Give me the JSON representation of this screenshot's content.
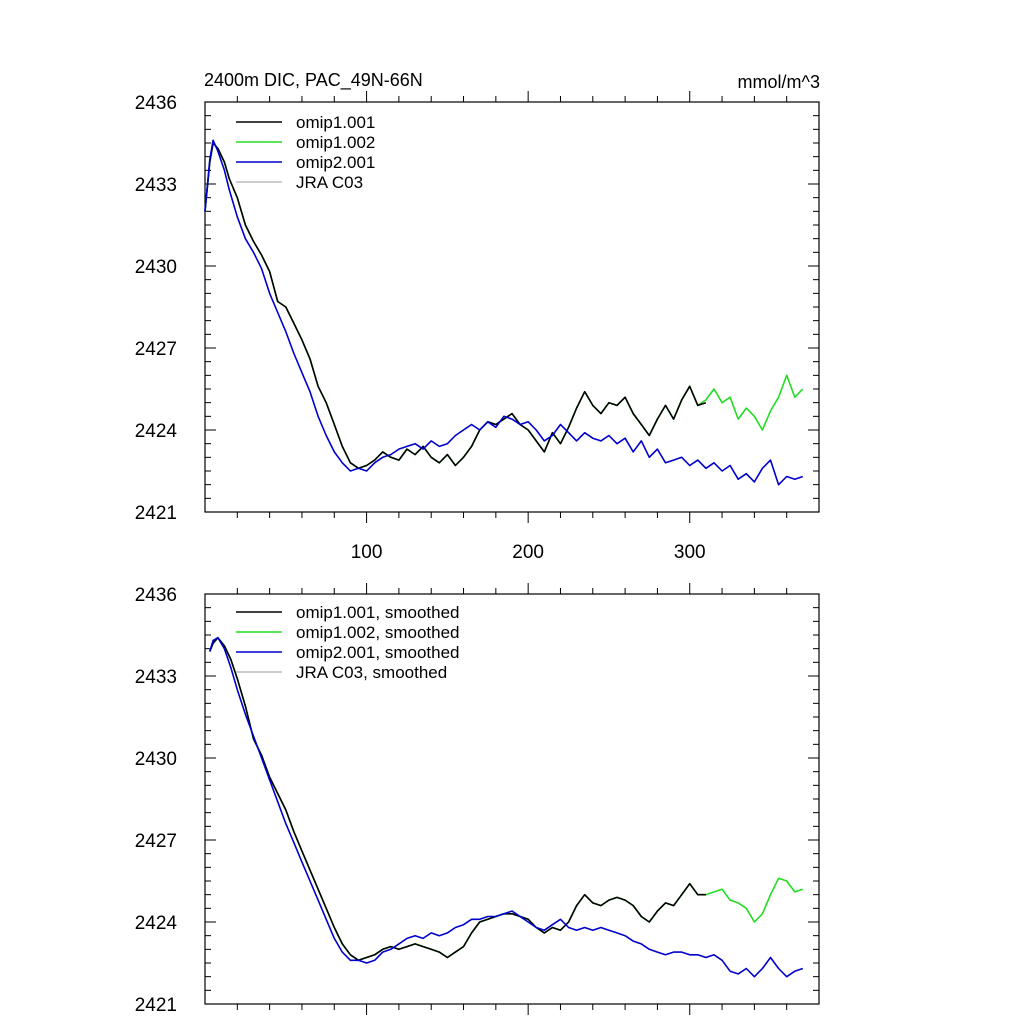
{
  "chart_data": [
    {
      "type": "line",
      "title": "2400m DIC, PAC_49N-66N",
      "units": "mmol/m^3",
      "xlabel": "",
      "ylabel": "",
      "xlim": [
        0,
        380
      ],
      "ylim": [
        2421,
        2436
      ],
      "x_ticks": [
        100,
        200,
        300
      ],
      "x_tick_labels": [
        "100",
        "200",
        "300"
      ],
      "y_ticks": [
        2421,
        2424,
        2427,
        2430,
        2433,
        2436
      ],
      "y_tick_labels": [
        "2421",
        "2424",
        "2427",
        "2430",
        "2433",
        "2436"
      ],
      "grid": false,
      "legend": "top-left",
      "series": [
        {
          "name": "omip1.001",
          "color": "#000000",
          "x": [
            0,
            3,
            5,
            8,
            12,
            15,
            20,
            25,
            30,
            35,
            40,
            45,
            50,
            55,
            60,
            65,
            70,
            75,
            80,
            85,
            90,
            95,
            100,
            105,
            110,
            115,
            120,
            125,
            130,
            135,
            140,
            145,
            150,
            155,
            160,
            165,
            170,
            175,
            180,
            185,
            190,
            195,
            200,
            205,
            210,
            215,
            220,
            225,
            230,
            235,
            240,
            245,
            250,
            255,
            260,
            265,
            270,
            275,
            280,
            285,
            290,
            295,
            300,
            305,
            310
          ],
          "values": [
            2432.0,
            2433.8,
            2434.5,
            2434.3,
            2433.8,
            2433.2,
            2432.5,
            2431.5,
            2430.9,
            2430.4,
            2429.8,
            2428.7,
            2428.5,
            2427.9,
            2427.3,
            2426.6,
            2425.6,
            2425.0,
            2424.2,
            2423.4,
            2422.8,
            2422.6,
            2422.7,
            2422.9,
            2423.2,
            2423.0,
            2422.9,
            2423.3,
            2423.1,
            2423.4,
            2423.0,
            2422.8,
            2423.1,
            2422.7,
            2423.0,
            2423.4,
            2424.0,
            2424.3,
            2424.2,
            2424.4,
            2424.6,
            2424.2,
            2424.0,
            2423.6,
            2423.2,
            2423.9,
            2423.5,
            2424.1,
            2424.8,
            2425.4,
            2424.9,
            2424.6,
            2425.0,
            2424.9,
            2425.2,
            2424.6,
            2424.2,
            2423.8,
            2424.4,
            2424.9,
            2424.4,
            2425.1,
            2425.6,
            2424.9,
            2425.0
          ]
        },
        {
          "name": "omip1.002",
          "color": "#22dd22",
          "x": [
            0,
            3,
            5,
            8,
            12,
            15,
            20,
            25,
            30,
            35,
            40,
            45,
            50,
            55,
            60,
            65,
            70,
            75,
            80,
            85,
            90,
            95,
            100,
            105,
            110,
            115,
            120,
            125,
            130,
            135,
            140,
            145,
            150,
            155,
            160,
            165,
            170,
            175,
            180,
            185,
            190,
            195,
            200,
            205,
            210,
            215,
            220,
            225,
            230,
            235,
            240,
            245,
            250,
            255,
            260,
            265,
            270,
            275,
            280,
            285,
            290,
            295,
            300,
            305,
            310,
            315,
            320,
            325,
            330,
            335,
            340,
            345,
            350,
            355,
            360,
            365,
            370
          ],
          "values": [
            2432.0,
            2433.8,
            2434.5,
            2434.3,
            2433.8,
            2433.2,
            2432.5,
            2431.5,
            2430.9,
            2430.4,
            2429.8,
            2428.7,
            2428.5,
            2427.9,
            2427.3,
            2426.6,
            2425.6,
            2425.0,
            2424.2,
            2423.4,
            2422.8,
            2422.6,
            2422.7,
            2422.9,
            2423.2,
            2423.0,
            2422.9,
            2423.3,
            2423.1,
            2423.4,
            2423.0,
            2422.8,
            2423.1,
            2422.7,
            2423.0,
            2423.4,
            2424.0,
            2424.3,
            2424.2,
            2424.4,
            2424.6,
            2424.2,
            2424.0,
            2423.6,
            2423.2,
            2423.9,
            2423.5,
            2424.1,
            2424.8,
            2425.4,
            2424.9,
            2424.6,
            2425.0,
            2424.9,
            2425.2,
            2424.6,
            2424.2,
            2423.8,
            2424.4,
            2424.9,
            2424.4,
            2425.1,
            2425.6,
            2424.9,
            2425.1,
            2425.5,
            2425.0,
            2425.2,
            2424.4,
            2424.8,
            2424.5,
            2424.0,
            2424.7,
            2425.2,
            2426.0,
            2425.2,
            2425.5
          ]
        },
        {
          "name": "omip2.001",
          "color": "#0000cc",
          "x": [
            0,
            3,
            5,
            8,
            12,
            15,
            20,
            25,
            30,
            35,
            40,
            45,
            50,
            55,
            60,
            65,
            70,
            75,
            80,
            85,
            90,
            95,
            100,
            105,
            110,
            115,
            120,
            125,
            130,
            135,
            140,
            145,
            150,
            155,
            160,
            165,
            170,
            175,
            180,
            185,
            190,
            195,
            200,
            205,
            210,
            215,
            220,
            225,
            230,
            235,
            240,
            245,
            250,
            255,
            260,
            265,
            270,
            275,
            280,
            285,
            290,
            295,
            300,
            305,
            310,
            315,
            320,
            325,
            330,
            335,
            340,
            345,
            350,
            355,
            360,
            365,
            370
          ],
          "values": [
            2432.0,
            2433.9,
            2434.6,
            2434.2,
            2433.5,
            2432.8,
            2431.8,
            2431.0,
            2430.5,
            2429.9,
            2429.0,
            2428.3,
            2427.6,
            2426.8,
            2426.1,
            2425.4,
            2424.5,
            2423.8,
            2423.2,
            2422.8,
            2422.5,
            2422.6,
            2422.5,
            2422.8,
            2423.0,
            2423.1,
            2423.3,
            2423.4,
            2423.5,
            2423.3,
            2423.6,
            2423.4,
            2423.5,
            2423.8,
            2424.0,
            2424.2,
            2424.0,
            2424.3,
            2424.1,
            2424.5,
            2424.4,
            2424.2,
            2424.3,
            2424.0,
            2423.6,
            2423.8,
            2424.2,
            2423.9,
            2423.6,
            2423.9,
            2423.7,
            2423.6,
            2423.8,
            2423.5,
            2423.7,
            2423.2,
            2423.6,
            2423.0,
            2423.3,
            2422.8,
            2422.9,
            2423.0,
            2422.7,
            2422.9,
            2422.6,
            2422.8,
            2422.5,
            2422.7,
            2422.2,
            2422.4,
            2422.1,
            2422.6,
            2422.9,
            2422.0,
            2422.3,
            2422.2,
            2422.3
          ]
        },
        {
          "name": "JRA C03",
          "color": "#bbbbbb",
          "x": [],
          "values": []
        }
      ]
    },
    {
      "type": "line",
      "title": "",
      "xlabel": "",
      "ylabel": "",
      "xlim": [
        0,
        380
      ],
      "ylim": [
        2421,
        2436
      ],
      "x_ticks": [
        100,
        200,
        300
      ],
      "x_tick_labels": [],
      "y_ticks": [
        2421,
        2424,
        2427,
        2430,
        2433,
        2436
      ],
      "y_tick_labels": [
        "2421",
        "2424",
        "2427",
        "2430",
        "2433",
        "2436"
      ],
      "grid": false,
      "legend": "top-left",
      "series": [
        {
          "name": "omip1.001, smoothed",
          "color": "#000000",
          "x": [
            3,
            5,
            8,
            12,
            16,
            20,
            25,
            30,
            35,
            40,
            45,
            50,
            55,
            60,
            65,
            70,
            75,
            80,
            85,
            90,
            95,
            100,
            105,
            110,
            115,
            120,
            125,
            130,
            135,
            140,
            145,
            150,
            155,
            160,
            165,
            170,
            175,
            180,
            185,
            190,
            195,
            200,
            205,
            210,
            215,
            220,
            225,
            230,
            235,
            240,
            245,
            250,
            255,
            260,
            265,
            270,
            275,
            280,
            285,
            290,
            295,
            300,
            305,
            310
          ],
          "values": [
            2433.9,
            2434.2,
            2434.4,
            2434.1,
            2433.6,
            2432.9,
            2431.9,
            2430.7,
            2430.1,
            2429.3,
            2428.7,
            2428.1,
            2427.3,
            2426.6,
            2425.9,
            2425.2,
            2424.5,
            2423.8,
            2423.2,
            2422.8,
            2422.6,
            2422.7,
            2422.8,
            2423.0,
            2423.1,
            2423.0,
            2423.1,
            2423.2,
            2423.1,
            2423.0,
            2422.9,
            2422.7,
            2422.9,
            2423.1,
            2423.6,
            2424.0,
            2424.1,
            2424.2,
            2424.3,
            2424.3,
            2424.2,
            2424.1,
            2423.8,
            2423.6,
            2423.8,
            2423.7,
            2424.0,
            2424.6,
            2425.0,
            2424.7,
            2424.6,
            2424.8,
            2424.9,
            2424.8,
            2424.6,
            2424.2,
            2424.0,
            2424.4,
            2424.7,
            2424.6,
            2425.0,
            2425.4,
            2425.0,
            2425.0
          ]
        },
        {
          "name": "omip1.002, smoothed",
          "color": "#22dd22",
          "x": [
            3,
            5,
            8,
            12,
            16,
            20,
            25,
            30,
            35,
            40,
            45,
            50,
            55,
            60,
            65,
            70,
            75,
            80,
            85,
            90,
            95,
            100,
            105,
            110,
            115,
            120,
            125,
            130,
            135,
            140,
            145,
            150,
            155,
            160,
            165,
            170,
            175,
            180,
            185,
            190,
            195,
            200,
            205,
            210,
            215,
            220,
            225,
            230,
            235,
            240,
            245,
            250,
            255,
            260,
            265,
            270,
            275,
            280,
            285,
            290,
            295,
            300,
            305,
            310,
            315,
            320,
            325,
            330,
            335,
            340,
            345,
            350,
            355,
            360,
            365,
            370
          ],
          "values": [
            2433.9,
            2434.2,
            2434.4,
            2434.1,
            2433.6,
            2432.9,
            2431.9,
            2430.7,
            2430.1,
            2429.3,
            2428.7,
            2428.1,
            2427.3,
            2426.6,
            2425.9,
            2425.2,
            2424.5,
            2423.8,
            2423.2,
            2422.8,
            2422.6,
            2422.7,
            2422.8,
            2423.0,
            2423.1,
            2423.0,
            2423.1,
            2423.2,
            2423.1,
            2423.0,
            2422.9,
            2422.7,
            2422.9,
            2423.1,
            2423.6,
            2424.0,
            2424.1,
            2424.2,
            2424.3,
            2424.3,
            2424.2,
            2424.1,
            2423.8,
            2423.6,
            2423.8,
            2423.7,
            2424.0,
            2424.6,
            2425.0,
            2424.7,
            2424.6,
            2424.8,
            2424.9,
            2424.8,
            2424.6,
            2424.2,
            2424.0,
            2424.4,
            2424.7,
            2424.6,
            2425.0,
            2425.4,
            2425.0,
            2425.0,
            2425.1,
            2425.2,
            2424.8,
            2424.7,
            2424.5,
            2424.0,
            2424.3,
            2425.0,
            2425.6,
            2425.5,
            2425.1,
            2425.2
          ]
        },
        {
          "name": "omip2.001, smoothed",
          "color": "#0000cc",
          "x": [
            3,
            5,
            8,
            12,
            16,
            20,
            25,
            30,
            35,
            40,
            45,
            50,
            55,
            60,
            65,
            70,
            75,
            80,
            85,
            90,
            95,
            100,
            105,
            110,
            115,
            120,
            125,
            130,
            135,
            140,
            145,
            150,
            155,
            160,
            165,
            170,
            175,
            180,
            185,
            190,
            195,
            200,
            205,
            210,
            215,
            220,
            225,
            230,
            235,
            240,
            245,
            250,
            255,
            260,
            265,
            270,
            275,
            280,
            285,
            290,
            295,
            300,
            305,
            310,
            315,
            320,
            325,
            330,
            335,
            340,
            345,
            350,
            355,
            360,
            365,
            370
          ],
          "values": [
            2433.9,
            2434.3,
            2434.4,
            2434.0,
            2433.3,
            2432.5,
            2431.6,
            2430.8,
            2430.0,
            2429.2,
            2428.4,
            2427.6,
            2426.9,
            2426.2,
            2425.5,
            2424.8,
            2424.1,
            2423.4,
            2422.9,
            2422.6,
            2422.6,
            2422.5,
            2422.6,
            2422.9,
            2423.0,
            2423.2,
            2423.4,
            2423.5,
            2423.4,
            2423.6,
            2423.5,
            2423.6,
            2423.8,
            2423.9,
            2424.1,
            2424.1,
            2424.2,
            2424.2,
            2424.3,
            2424.4,
            2424.2,
            2424.0,
            2423.8,
            2423.7,
            2423.9,
            2424.1,
            2423.8,
            2423.7,
            2423.8,
            2423.7,
            2423.8,
            2423.7,
            2423.6,
            2423.5,
            2423.3,
            2423.2,
            2423.0,
            2422.9,
            2422.8,
            2422.9,
            2422.9,
            2422.8,
            2422.8,
            2422.7,
            2422.8,
            2422.6,
            2422.2,
            2422.1,
            2422.3,
            2422.0,
            2422.3,
            2422.7,
            2422.3,
            2422.0,
            2422.2,
            2422.3
          ]
        },
        {
          "name": "JRA C03, smoothed",
          "color": "#bbbbbb",
          "x": [],
          "values": []
        }
      ]
    }
  ]
}
